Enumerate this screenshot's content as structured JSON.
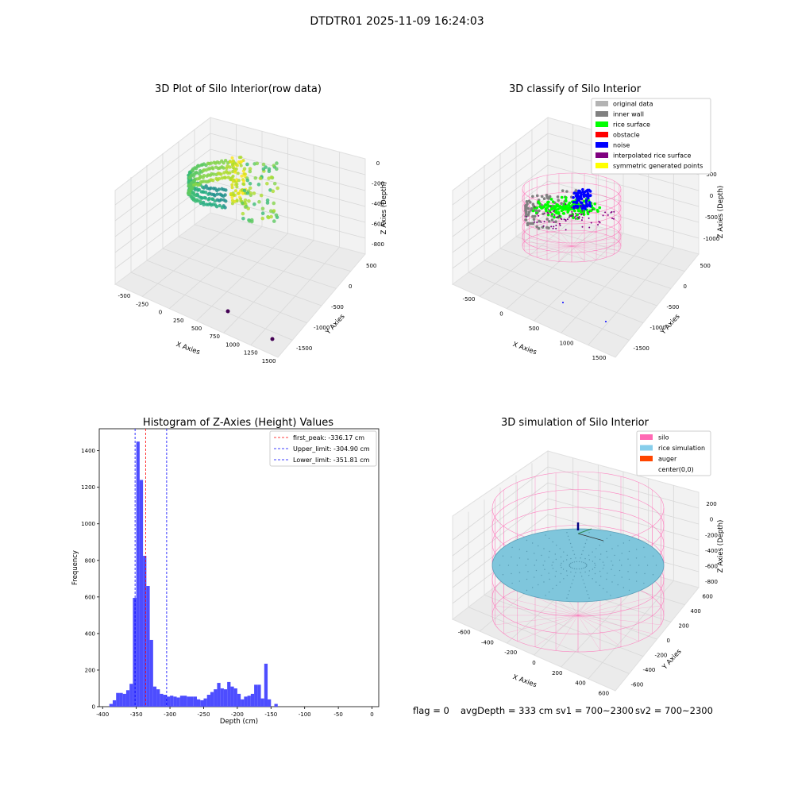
{
  "figure": {
    "suptitle": "DTDTR01 2025-11-09 16:24:03",
    "status": {
      "flag": "flag = 0",
      "avg_depth": "avgDepth = 333 cm",
      "sv1": "sv1 = 700~2300",
      "sv2": "sv2 = 700~2300"
    }
  },
  "chart_data": [
    {
      "type": "scatter",
      "title": "3D Plot of Silo Interior(row data)",
      "xlabel": "X Axies",
      "ylabel": "Y Axies",
      "zlabel": "Z Axies (Depth)",
      "x_ticks": [
        -500,
        -250,
        0,
        250,
        500,
        750,
        1000,
        1250,
        1500
      ],
      "y_ticks": [
        500,
        0,
        -500,
        -1000,
        -1500
      ],
      "z_ticks": [
        0,
        -200,
        -400,
        -600,
        -800
      ],
      "colormap": "viridis",
      "outlier_color": "#440154"
    },
    {
      "type": "scatter",
      "title": "3D classify of Silo Interior",
      "xlabel": "X Axies",
      "ylabel": "Y Axies",
      "zlabel": "Z Axies (Depth)",
      "x_ticks": [
        -500,
        0,
        500,
        1000,
        1500
      ],
      "y_ticks": [
        500,
        0,
        -500,
        -1000,
        -1500
      ],
      "z_ticks": [
        500,
        0,
        -500,
        -1000
      ],
      "legend_position": "top-right",
      "legend": [
        {
          "label": "original data",
          "color": "#b3b3b3"
        },
        {
          "label": "inner wall",
          "color": "#808080"
        },
        {
          "label": "rice surface",
          "color": "#00ff00"
        },
        {
          "label": "obstacle",
          "color": "#ff0000"
        },
        {
          "label": "noise",
          "color": "#0000ff"
        },
        {
          "label": "interpolated rice surface",
          "color": "#800080"
        },
        {
          "label": "symmetric generated points",
          "color": "#ffff00"
        }
      ],
      "wireframe_color": "#ff69b4"
    },
    {
      "type": "bar",
      "title": "Histogram of Z-Axies (Height) Values",
      "xlabel": "Depth (cm)",
      "ylabel": "Frequency",
      "xlim": [
        -405,
        10
      ],
      "ylim": [
        0,
        1520
      ],
      "x_ticks": [
        -400,
        -350,
        -300,
        -250,
        -200,
        -150,
        -100,
        -50,
        0
      ],
      "y_ticks": [
        0,
        200,
        400,
        600,
        800,
        1000,
        1200,
        1400
      ],
      "bin_width": 5,
      "bins": [
        {
          "x": -390,
          "y": 15
        },
        {
          "x": -385,
          "y": 35
        },
        {
          "x": -380,
          "y": 75
        },
        {
          "x": -375,
          "y": 75
        },
        {
          "x": -370,
          "y": 70
        },
        {
          "x": -365,
          "y": 90
        },
        {
          "x": -360,
          "y": 125
        },
        {
          "x": -355,
          "y": 595
        },
        {
          "x": -350,
          "y": 1450
        },
        {
          "x": -345,
          "y": 1240
        },
        {
          "x": -340,
          "y": 825
        },
        {
          "x": -335,
          "y": 660
        },
        {
          "x": -330,
          "y": 365
        },
        {
          "x": -325,
          "y": 110
        },
        {
          "x": -320,
          "y": 95
        },
        {
          "x": -315,
          "y": 70
        },
        {
          "x": -310,
          "y": 65
        },
        {
          "x": -305,
          "y": 55
        },
        {
          "x": -300,
          "y": 60
        },
        {
          "x": -295,
          "y": 55
        },
        {
          "x": -290,
          "y": 50
        },
        {
          "x": -285,
          "y": 60
        },
        {
          "x": -280,
          "y": 60
        },
        {
          "x": -275,
          "y": 55
        },
        {
          "x": -270,
          "y": 55
        },
        {
          "x": -265,
          "y": 55
        },
        {
          "x": -260,
          "y": 40
        },
        {
          "x": -255,
          "y": 35
        },
        {
          "x": -250,
          "y": 45
        },
        {
          "x": -245,
          "y": 65
        },
        {
          "x": -240,
          "y": 80
        },
        {
          "x": -235,
          "y": 95
        },
        {
          "x": -230,
          "y": 130
        },
        {
          "x": -225,
          "y": 100
        },
        {
          "x": -220,
          "y": 95
        },
        {
          "x": -215,
          "y": 135
        },
        {
          "x": -210,
          "y": 110
        },
        {
          "x": -205,
          "y": 100
        },
        {
          "x": -200,
          "y": 70
        },
        {
          "x": -195,
          "y": 40
        },
        {
          "x": -190,
          "y": 55
        },
        {
          "x": -185,
          "y": 60
        },
        {
          "x": -180,
          "y": 70
        },
        {
          "x": -175,
          "y": 120
        },
        {
          "x": -170,
          "y": 120
        },
        {
          "x": -165,
          "y": 45
        },
        {
          "x": -160,
          "y": 235
        },
        {
          "x": -155,
          "y": 40
        },
        {
          "x": -150,
          "y": 0
        },
        {
          "x": -145,
          "y": 15
        }
      ],
      "bar_color": "#4d4dff",
      "vlines": [
        {
          "label": "first_peak: -336.17 cm",
          "x": -336.17,
          "color": "#ff0000"
        },
        {
          "label": "Upper_limit: -304.90 cm",
          "x": -304.9,
          "color": "#0000ff"
        },
        {
          "label": "Lower_limit: -351.81 cm",
          "x": -351.81,
          "color": "#0000ff"
        }
      ],
      "legend_position": "top-right"
    },
    {
      "type": "scatter",
      "title": "3D simulation of Silo Interior",
      "xlabel": "X Axies",
      "ylabel": "Y Axies",
      "zlabel": "Z Axies (Depth)",
      "x_ticks": [
        -600,
        -400,
        -200,
        0,
        200,
        400,
        600
      ],
      "y_ticks": [
        600,
        400,
        200,
        0,
        -200,
        -400,
        -600
      ],
      "z_ticks": [
        200,
        0,
        -200,
        -400,
        -600,
        -800
      ],
      "legend_position": "top-right",
      "legend": [
        {
          "label": "silo",
          "color": "#ff69b4"
        },
        {
          "label": "rice simulation",
          "color": "#87ceeb"
        },
        {
          "label": "auger",
          "color": "#ff4500"
        },
        {
          "label": "center(0,0)",
          "color": ""
        }
      ]
    }
  ]
}
